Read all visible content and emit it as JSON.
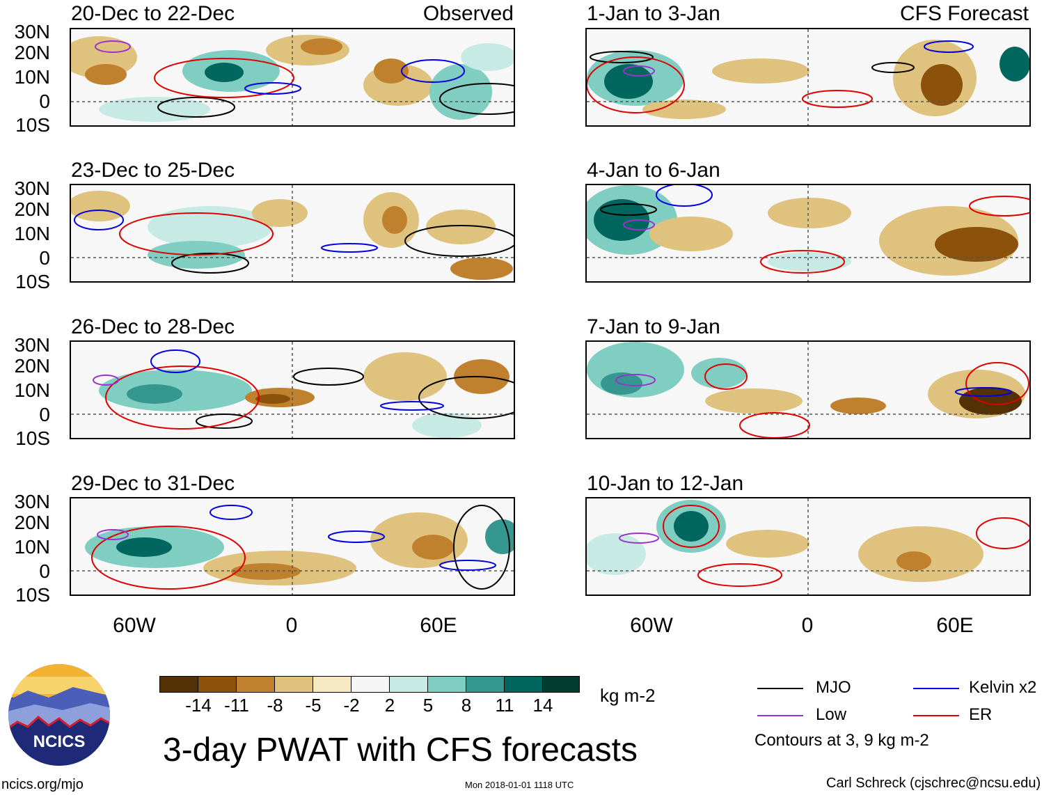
{
  "observed_header": "Observed",
  "forecast_header": "CFS Forecast",
  "panels_left": [
    {
      "title": "20-Dec to 22-Dec"
    },
    {
      "title": "23-Dec to 25-Dec"
    },
    {
      "title": "26-Dec to 28-Dec"
    },
    {
      "title": "29-Dec to 31-Dec"
    }
  ],
  "panels_right": [
    {
      "title": "1-Jan to 3-Jan"
    },
    {
      "title": "4-Jan to 6-Jan"
    },
    {
      "title": "7-Jan to 9-Jan"
    },
    {
      "title": "10-Jan to 12-Jan"
    }
  ],
  "lat_labels": [
    "30N",
    "20N",
    "10N",
    "0",
    "10S"
  ],
  "lon_labels": [
    "60W",
    "0",
    "60E"
  ],
  "colorbar": {
    "colors": [
      "#543005",
      "#8c510a",
      "#bf812d",
      "#dfc27d",
      "#f6e8c3",
      "#f5f5f5",
      "#c7eae5",
      "#80cdc1",
      "#35978f",
      "#01665e",
      "#003c30"
    ],
    "labels": [
      "-14",
      "-11",
      "-8",
      "-5",
      "-2",
      "2",
      "5",
      "8",
      "11",
      "14"
    ],
    "unit": "kg m-2"
  },
  "legend": {
    "mjo": {
      "label": "MJO",
      "color": "#000000"
    },
    "kelvin": {
      "label": "Kelvin x2",
      "color": "#0000e0"
    },
    "low": {
      "label": "Low",
      "color": "#9a32cd"
    },
    "er": {
      "label": "ER",
      "color": "#e00000"
    },
    "contours_note": "Contours at 3, 9 kg m-2"
  },
  "logo_text": "NCICS",
  "main_title": "3-day PWAT with CFS forecasts",
  "footer": {
    "left": "ncics.org/mjo",
    "center": "Mon 2018-01-01 1118 UTC",
    "right": "Carl Schreck (cjschrec@ncsu.edu)"
  }
}
